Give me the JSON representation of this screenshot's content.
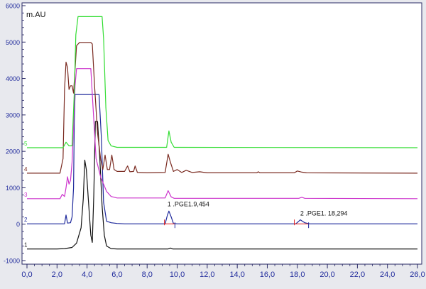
{
  "chart_data": {
    "type": "line",
    "y_unit_label": "m.AU",
    "xlim": [
      0,
      26
    ],
    "ylim": [
      -1000,
      6000
    ],
    "x_ticks": [
      "0,0",
      "2,0",
      "4,0",
      "6,0",
      "8,0",
      "10,0",
      "12,0",
      "14,0",
      "16,0",
      "18,0",
      "20,0",
      "22,0",
      "24,0",
      "26,0"
    ],
    "y_ticks": [
      "-1000",
      "0",
      "1000",
      "2000",
      "3000",
      "4000",
      "5000",
      "6000"
    ],
    "grid": false,
    "series": [
      {
        "name": "1",
        "color": "#111111",
        "points": [
          [
            0,
            -680
          ],
          [
            2,
            -680
          ],
          [
            2.5,
            -670
          ],
          [
            3.0,
            -640
          ],
          [
            3.3,
            -520
          ],
          [
            3.6,
            -100
          ],
          [
            3.75,
            700
          ],
          [
            3.85,
            1760
          ],
          [
            3.95,
            1500
          ],
          [
            4.1,
            600
          ],
          [
            4.25,
            -300
          ],
          [
            4.35,
            -500
          ],
          [
            4.45,
            800
          ],
          [
            4.55,
            2820
          ],
          [
            4.7,
            2820
          ],
          [
            4.85,
            1800
          ],
          [
            5.0,
            500
          ],
          [
            5.15,
            -300
          ],
          [
            5.3,
            -600
          ],
          [
            5.6,
            -670
          ],
          [
            6.0,
            -680
          ],
          [
            9.4,
            -680
          ],
          [
            9.55,
            -655
          ],
          [
            9.7,
            -680
          ],
          [
            26,
            -680
          ]
        ]
      },
      {
        "name": "2",
        "color": "#1f2a9c",
        "points": [
          [
            0,
            10
          ],
          [
            2.5,
            10
          ],
          [
            2.6,
            250
          ],
          [
            2.7,
            30
          ],
          [
            2.9,
            40
          ],
          [
            3.0,
            200
          ],
          [
            3.1,
            1000
          ],
          [
            3.15,
            2800
          ],
          [
            3.2,
            3560
          ],
          [
            4.8,
            3560
          ],
          [
            4.95,
            2400
          ],
          [
            5.1,
            600
          ],
          [
            5.3,
            80
          ],
          [
            5.6,
            40
          ],
          [
            6.0,
            20
          ],
          [
            6.5,
            10
          ],
          [
            9.2,
            10
          ],
          [
            9.35,
            250
          ],
          [
            9.45,
            360
          ],
          [
            9.6,
            200
          ],
          [
            9.75,
            20
          ],
          [
            10.0,
            10
          ],
          [
            17.9,
            10
          ],
          [
            18.2,
            120
          ],
          [
            18.5,
            40
          ],
          [
            18.8,
            10
          ],
          [
            26,
            10
          ]
        ]
      },
      {
        "name": "3",
        "color": "#cc33cc",
        "points": [
          [
            0,
            700
          ],
          [
            2.2,
            700
          ],
          [
            2.35,
            820
          ],
          [
            2.5,
            760
          ],
          [
            2.6,
            1000
          ],
          [
            2.7,
            1300
          ],
          [
            2.8,
            1100
          ],
          [
            2.9,
            1200
          ],
          [
            3.0,
            1700
          ],
          [
            3.1,
            2700
          ],
          [
            3.2,
            3800
          ],
          [
            3.3,
            4270
          ],
          [
            4.25,
            4270
          ],
          [
            4.4,
            3200
          ],
          [
            4.6,
            1800
          ],
          [
            4.9,
            1300
          ],
          [
            5.1,
            1100
          ],
          [
            5.3,
            900
          ],
          [
            5.6,
            760
          ],
          [
            6.0,
            720
          ],
          [
            9.2,
            720
          ],
          [
            9.4,
            920
          ],
          [
            9.6,
            750
          ],
          [
            9.8,
            710
          ],
          [
            18.1,
            710
          ],
          [
            18.3,
            740
          ],
          [
            18.5,
            710
          ],
          [
            26,
            700
          ]
        ]
      },
      {
        "name": "4",
        "color": "#7a2a20",
        "points": [
          [
            0,
            1400
          ],
          [
            2.2,
            1400
          ],
          [
            2.4,
            1800
          ],
          [
            2.5,
            3700
          ],
          [
            2.6,
            4450
          ],
          [
            2.7,
            4300
          ],
          [
            2.8,
            3700
          ],
          [
            2.9,
            3800
          ],
          [
            3.0,
            3800
          ],
          [
            3.1,
            3600
          ],
          [
            3.3,
            4900
          ],
          [
            3.5,
            4990
          ],
          [
            4.25,
            4990
          ],
          [
            4.35,
            4950
          ],
          [
            4.5,
            3800
          ],
          [
            4.7,
            2500
          ],
          [
            4.9,
            1800
          ],
          [
            5.05,
            1500
          ],
          [
            5.2,
            1900
          ],
          [
            5.35,
            1500
          ],
          [
            5.5,
            1500
          ],
          [
            5.65,
            1900
          ],
          [
            5.8,
            1500
          ],
          [
            6.0,
            1450
          ],
          [
            6.5,
            1450
          ],
          [
            6.7,
            1600
          ],
          [
            6.85,
            1440
          ],
          [
            7.1,
            1450
          ],
          [
            7.2,
            1600
          ],
          [
            7.35,
            1420
          ],
          [
            8.0,
            1410
          ],
          [
            9.2,
            1420
          ],
          [
            9.4,
            1920
          ],
          [
            9.55,
            1700
          ],
          [
            9.75,
            1450
          ],
          [
            10.0,
            1500
          ],
          [
            10.3,
            1420
          ],
          [
            10.6,
            1480
          ],
          [
            11.0,
            1420
          ],
          [
            11.5,
            1440
          ],
          [
            12.0,
            1410
          ],
          [
            15.3,
            1410
          ],
          [
            15.4,
            1440
          ],
          [
            15.5,
            1410
          ],
          [
            17.8,
            1410
          ],
          [
            18.0,
            1460
          ],
          [
            18.3,
            1430
          ],
          [
            18.6,
            1410
          ],
          [
            26,
            1400
          ]
        ]
      },
      {
        "name": "5",
        "color": "#33dd33",
        "points": [
          [
            0,
            2100
          ],
          [
            2.4,
            2100
          ],
          [
            2.6,
            2250
          ],
          [
            2.8,
            2150
          ],
          [
            3.0,
            2150
          ],
          [
            3.15,
            3600
          ],
          [
            3.25,
            5200
          ],
          [
            3.4,
            5700
          ],
          [
            5.0,
            5700
          ],
          [
            5.1,
            5100
          ],
          [
            5.25,
            3200
          ],
          [
            5.4,
            2300
          ],
          [
            5.6,
            2150
          ],
          [
            6.0,
            2110
          ],
          [
            9.3,
            2110
          ],
          [
            9.45,
            2560
          ],
          [
            9.6,
            2250
          ],
          [
            9.8,
            2110
          ],
          [
            26,
            2100
          ]
        ]
      }
    ],
    "annotations": [
      {
        "text": "1 .PGE1.9,454",
        "x": 9.45,
        "y": 370
      },
      {
        "text": "2 .PGE1.  18,294",
        "x": 18.29,
        "y": 120
      }
    ],
    "integration_marks": [
      {
        "series": "2",
        "x_start": 9.15,
        "x_end": 9.85
      },
      {
        "series": "2",
        "x_start": 17.8,
        "x_end": 18.75
      }
    ]
  }
}
